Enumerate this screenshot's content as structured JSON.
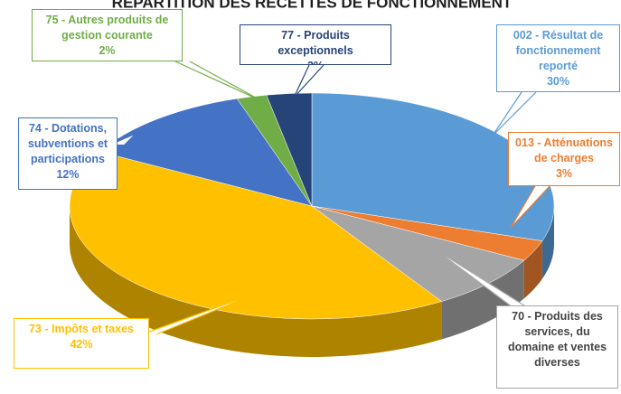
{
  "chart_data": {
    "type": "pie3d",
    "title": "RÉPARTITION DES RECETTES DE FONCTIONNEMENT",
    "categories": [
      "002 - Résultat de fonctionnement reporté",
      "013 - Atténuations de charges",
      "70 - Produits des services, du domaine et ventes diverses",
      "73 - Impôts et taxes",
      "74 - Dotations, subventions et participations",
      "75 - Autres produits de gestion courante",
      "77 - Produits exceptionnels"
    ],
    "values": [
      30,
      3,
      8,
      42,
      12,
      2,
      3
    ],
    "value_labels": [
      "30%",
      "3%",
      null,
      "42%",
      "12%",
      "2%",
      "3%"
    ],
    "colors": [
      "#5b9bd5",
      "#ed7d31",
      "#a5a5a5",
      "#ffc000",
      "#4472c4",
      "#70ad47",
      "#264478"
    ]
  }
}
